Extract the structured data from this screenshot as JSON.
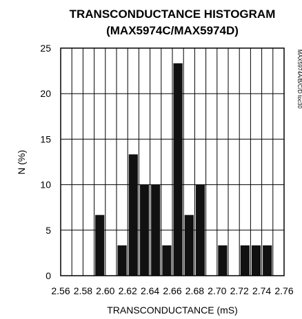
{
  "chart_data": {
    "type": "bar",
    "title_line1": "TRANSCONDUCTANCE HISTOGRAM",
    "title_line2": "(MAX5974C/MAX5974D)",
    "xlabel": "TRANSCONDUCTANCE (mS)",
    "ylabel": "N (%)",
    "doc_id": "MAX5974A/B/C/D toc30",
    "xlim": [
      2.56,
      2.76
    ],
    "ylim": [
      0,
      25
    ],
    "x_ticks": [
      "2.56",
      "2.58",
      "2.60",
      "2.62",
      "2.64",
      "2.66",
      "2.68",
      "2.70",
      "2.72",
      "2.74",
      "2.76"
    ],
    "y_ticks": [
      "0",
      "5",
      "10",
      "15",
      "20",
      "25"
    ],
    "bin_width": 0.01,
    "grid": true,
    "categories": [
      2.595,
      2.605,
      2.615,
      2.625,
      2.635,
      2.645,
      2.655,
      2.665,
      2.675,
      2.685,
      2.695,
      2.705,
      2.715,
      2.725,
      2.735,
      2.745,
      2.755
    ],
    "values": [
      6.67,
      0,
      3.33,
      13.33,
      10,
      10,
      3.33,
      23.33,
      6.67,
      10,
      0,
      3.33,
      0,
      3.33,
      3.33,
      3.33,
      0
    ]
  }
}
